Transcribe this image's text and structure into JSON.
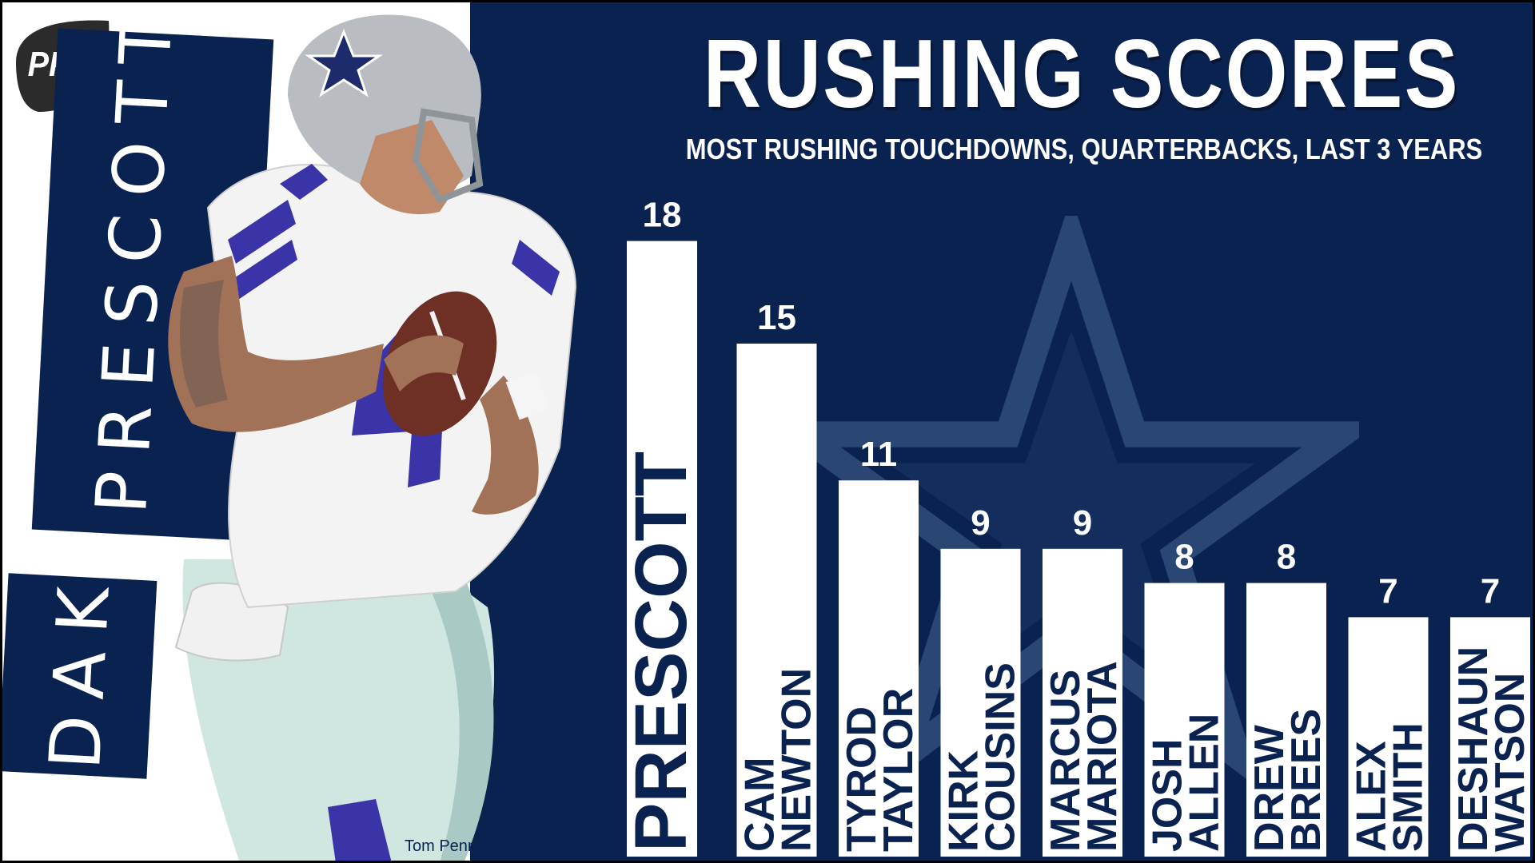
{
  "title": "RUSHING SCORES",
  "subtitle": "MOST RUSHING TOUCHDOWNS, QUARTERBACKS, LAST 3 YEARS",
  "logo_text": "PFF",
  "player_name_first": "DAK",
  "player_name_last": "PRESCOTT",
  "photo_credit": "Tom Pennington/Getty Images",
  "colors": {
    "navy": "#0a2250",
    "bar": "#ffffff",
    "label": "#0a2250",
    "star": "#2a4673"
  },
  "chart_data": {
    "type": "bar",
    "title": "RUSHING SCORES",
    "subtitle": "MOST RUSHING TOUCHDOWNS, QUARTERBACKS, LAST 3 YEARS",
    "categories": [
      [
        "PRESCOTT"
      ],
      [
        "CAM",
        "NEWTON"
      ],
      [
        "TYROD",
        "TAYLOR"
      ],
      [
        "KIRK",
        "COUSINS"
      ],
      [
        "MARCUS",
        "MARIOTA"
      ],
      [
        "JOSH",
        "ALLEN"
      ],
      [
        "DREW",
        "BREES"
      ],
      [
        "ALEX",
        "SMITH"
      ],
      [
        "DESHAUN",
        "WATSON"
      ]
    ],
    "values": [
      18,
      15,
      11,
      9,
      9,
      8,
      8,
      7,
      7
    ],
    "xlabel": "",
    "ylabel": "",
    "grid": false,
    "legend": "none"
  }
}
